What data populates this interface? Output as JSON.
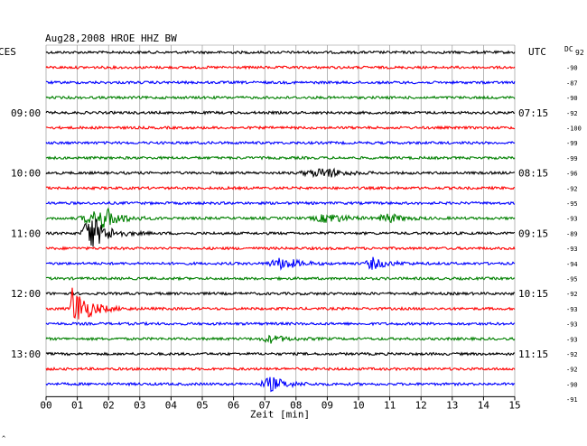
{
  "header": {
    "title": "Aug28,2008  HROE HHZ BW",
    "left_tz": "CES",
    "right_tz": "UTC",
    "dc_label": "DC",
    "dc_first": "92",
    "corner_mark": "^"
  },
  "chart_data": {
    "type": "line",
    "title": "Aug28,2008  HROE HHZ BW",
    "xlabel": "Zeit [min]",
    "ylabel": "",
    "xlim": [
      0,
      15
    ],
    "x_ticks": [
      "00",
      "01",
      "02",
      "03",
      "04",
      "05",
      "06",
      "07",
      "08",
      "09",
      "10",
      "11",
      "12",
      "13",
      "14",
      "15"
    ],
    "grid": true,
    "trace_colors": [
      "#000000",
      "#ff0000",
      "#0000ff",
      "#008000"
    ],
    "left_time_labels": [
      {
        "row": 4,
        "label": "09:00"
      },
      {
        "row": 8,
        "label": "10:00"
      },
      {
        "row": 12,
        "label": "11:00"
      },
      {
        "row": 16,
        "label": "12:00"
      },
      {
        "row": 20,
        "label": "13:00"
      }
    ],
    "right_time_labels": [
      {
        "row": 4,
        "label": "07:15"
      },
      {
        "row": 8,
        "label": "08:15"
      },
      {
        "row": 12,
        "label": "09:15"
      },
      {
        "row": 16,
        "label": "10:15"
      },
      {
        "row": 20,
        "label": "11:15"
      }
    ],
    "dc_offsets": [
      "-90",
      "-87",
      "-90",
      "-92",
      "-100",
      "-99",
      "-99",
      "-96",
      "-92",
      "-95",
      "-93",
      "-89",
      "-93",
      "-94",
      "-95",
      "-92",
      "-93",
      "-93",
      "-93",
      "-92",
      "-92",
      "-90",
      "-91"
    ],
    "events": [
      {
        "row": 11,
        "start_min": 1.0,
        "peak_min": 1.9,
        "amp": 0.45
      },
      {
        "row": 12,
        "start_min": 1.1,
        "peak_min": 1.4,
        "amp": 0.85
      },
      {
        "row": 17,
        "start_min": 0.7,
        "peak_min": 0.85,
        "amp": 1.0
      },
      {
        "row": 8,
        "start_min": 8.0,
        "peak_min": 9.0,
        "amp": 0.2
      },
      {
        "row": 11,
        "start_min": 8.4,
        "peak_min": 9.1,
        "amp": 0.2
      },
      {
        "row": 11,
        "start_min": 10.6,
        "peak_min": 10.9,
        "amp": 0.2
      },
      {
        "row": 14,
        "start_min": 7.0,
        "peak_min": 7.6,
        "amp": 0.25
      },
      {
        "row": 14,
        "start_min": 10.2,
        "peak_min": 10.4,
        "amp": 0.25
      },
      {
        "row": 19,
        "start_min": 6.8,
        "peak_min": 7.2,
        "amp": 0.15
      },
      {
        "row": 22,
        "start_min": 6.8,
        "peak_min": 7.2,
        "amp": 0.3
      }
    ]
  }
}
